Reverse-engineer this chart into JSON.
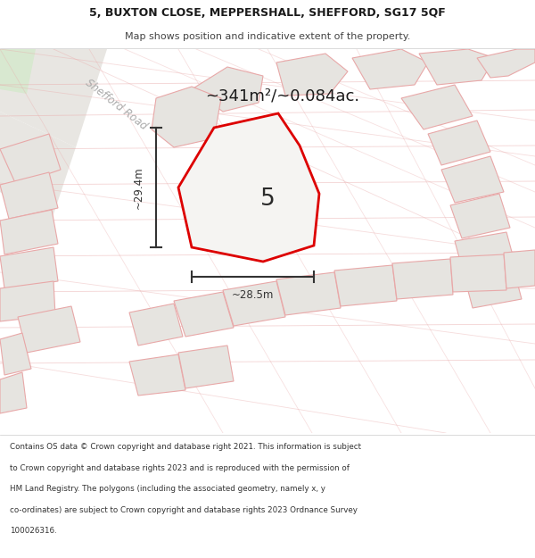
{
  "title_line1": "5, BUXTON CLOSE, MEPPERSHALL, SHEFFORD, SG17 5QF",
  "title_line2": "Map shows position and indicative extent of the property.",
  "area_label": "~341m²/~0.084ac.",
  "plot_number": "5",
  "dim_height": "~29.4m",
  "dim_width": "~28.5m",
  "road_label": "Shefford Road",
  "footer_lines": [
    "Contains OS data © Crown copyright and database right 2021. This information is subject",
    "to Crown copyright and database rights 2023 and is reproduced with the permission of",
    "HM Land Registry. The polygons (including the associated geometry, namely x, y",
    "co-ordinates) are subject to Crown copyright and database rights 2023 Ordnance Survey",
    "100026316."
  ],
  "map_bg": "#f7f6f4",
  "plot_fill": "#f0efed",
  "plot_edge": "#dd0000",
  "road_fill": "#e8e6e2",
  "road_light": "#f0eeea",
  "other_plots_fill": "#e6e4e0",
  "other_plots_edge": "#e8a8a8",
  "cad_line_color": "#e8a8a8",
  "green_patch": "#d8e8d0",
  "text_dark": "#1a1a1a",
  "text_mid": "#444444",
  "road_text_color": "#aaaaaa",
  "footer_bg": "#ffffff",
  "header_bg": "#ffffff",
  "dim_color": "#333333",
  "header_sep": "#cccccc"
}
